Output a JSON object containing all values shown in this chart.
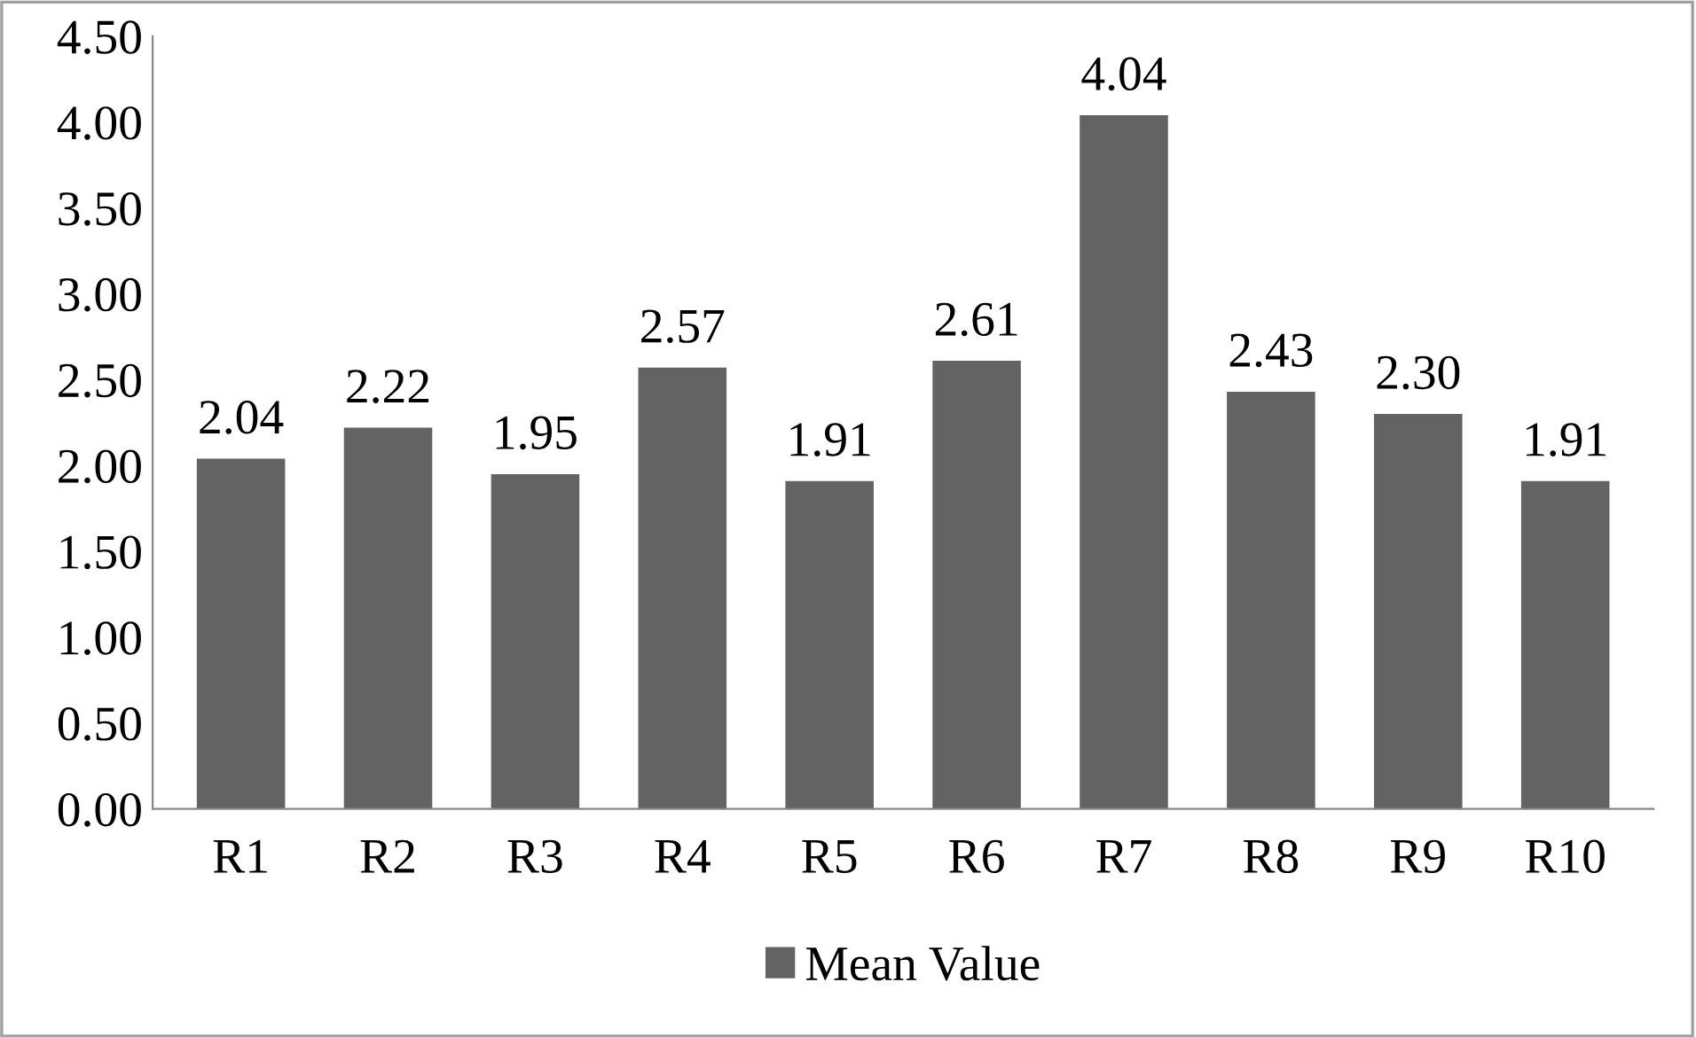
{
  "chart_data": {
    "type": "bar",
    "categories": [
      "R1",
      "R2",
      "R3",
      "R4",
      "R5",
      "R6",
      "R7",
      "R8",
      "R9",
      "R10"
    ],
    "series": [
      {
        "name": "Mean Value",
        "color": "#636363",
        "values": [
          2.04,
          2.22,
          1.95,
          2.57,
          1.91,
          2.61,
          4.04,
          2.43,
          2.3,
          1.91
        ],
        "value_labels": [
          "2.04",
          "2.22",
          "1.95",
          "2.57",
          "1.91",
          "2.61",
          "4.04",
          "2.43",
          "2.30",
          "1.91"
        ]
      }
    ],
    "ylim": [
      0,
      4.5
    ],
    "yticks": [
      {
        "value": 0,
        "label": "0.00"
      },
      {
        "value": 0.5,
        "label": "0.50"
      },
      {
        "value": 1,
        "label": "1.00"
      },
      {
        "value": 1.5,
        "label": "1.50"
      },
      {
        "value": 2,
        "label": "2.00"
      },
      {
        "value": 2.5,
        "label": "2.50"
      },
      {
        "value": 3,
        "label": "3.00"
      },
      {
        "value": 3.5,
        "label": "3.50"
      },
      {
        "value": 4,
        "label": "4.00"
      },
      {
        "value": 4.5,
        "label": "4.50"
      }
    ],
    "grid": false,
    "legend": "bottom"
  }
}
